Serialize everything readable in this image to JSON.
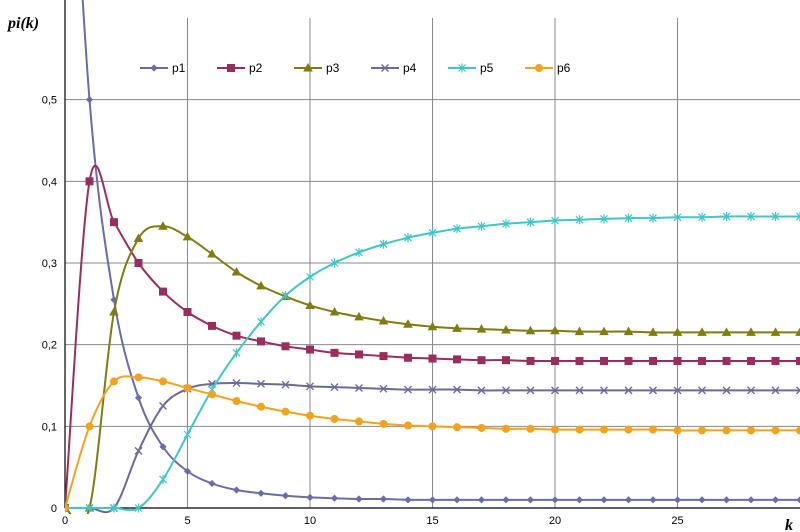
{
  "chart_data": {
    "type": "line",
    "title": "",
    "xlabel": "k",
    "ylabel": "pi(k)",
    "xlim": [
      0,
      30
    ],
    "ylim": [
      0,
      0.6
    ],
    "x_ticks": [
      "0",
      "5",
      "10",
      "15",
      "20",
      "25"
    ],
    "y_ticks": [
      "0",
      "0,1",
      "0,2",
      "0,3",
      "0,4",
      "0,5"
    ],
    "grid": true,
    "legend_position": "top",
    "x": [
      0,
      1,
      2,
      3,
      4,
      5,
      6,
      7,
      8,
      9,
      10,
      11,
      12,
      13,
      14,
      15,
      16,
      17,
      18,
      19,
      20,
      21,
      22,
      23,
      24,
      25,
      26,
      27,
      28,
      29,
      30
    ],
    "series": [
      {
        "name": "p1",
        "color": "#6b6ba8",
        "marker": "diamond",
        "values": [
          1.0,
          0.5,
          0.255,
          0.135,
          0.075,
          0.045,
          0.03,
          0.022,
          0.018,
          0.015,
          0.013,
          0.012,
          0.011,
          0.011,
          0.01,
          0.01,
          0.01,
          0.01,
          0.01,
          0.01,
          0.01,
          0.01,
          0.01,
          0.01,
          0.01,
          0.01,
          0.01,
          0.01,
          0.01,
          0.01,
          0.01
        ]
      },
      {
        "name": "p2",
        "color": "#9b2d5e",
        "marker": "square",
        "values": [
          0,
          0.4,
          0.35,
          0.3,
          0.265,
          0.24,
          0.223,
          0.211,
          0.204,
          0.198,
          0.194,
          0.19,
          0.188,
          0.186,
          0.184,
          0.183,
          0.182,
          0.181,
          0.181,
          0.18,
          0.18,
          0.18,
          0.18,
          0.18,
          0.18,
          0.18,
          0.18,
          0.18,
          0.18,
          0.18,
          0.18
        ]
      },
      {
        "name": "p3",
        "color": "#7d7d10",
        "marker": "triangle",
        "values": [
          0,
          0,
          0.24,
          0.33,
          0.345,
          0.332,
          0.311,
          0.289,
          0.272,
          0.259,
          0.248,
          0.24,
          0.234,
          0.229,
          0.225,
          0.222,
          0.22,
          0.219,
          0.218,
          0.217,
          0.217,
          0.216,
          0.216,
          0.216,
          0.215,
          0.215,
          0.215,
          0.215,
          0.215,
          0.215,
          0.215
        ]
      },
      {
        "name": "p4",
        "color": "#6b6b9b",
        "marker": "x",
        "values": [
          0,
          0,
          0,
          0.07,
          0.125,
          0.146,
          0.152,
          0.153,
          0.152,
          0.151,
          0.149,
          0.148,
          0.147,
          0.146,
          0.145,
          0.145,
          0.145,
          0.144,
          0.144,
          0.144,
          0.144,
          0.144,
          0.144,
          0.144,
          0.144,
          0.144,
          0.144,
          0.144,
          0.144,
          0.144,
          0.144
        ]
      },
      {
        "name": "p5",
        "color": "#3ec7c7",
        "marker": "star",
        "values": [
          0,
          0,
          0,
          0,
          0.035,
          0.09,
          0.145,
          0.19,
          0.228,
          0.26,
          0.283,
          0.3,
          0.313,
          0.323,
          0.331,
          0.337,
          0.342,
          0.345,
          0.348,
          0.35,
          0.352,
          0.353,
          0.354,
          0.355,
          0.355,
          0.356,
          0.356,
          0.357,
          0.357,
          0.357,
          0.357
        ]
      },
      {
        "name": "p6",
        "color": "#f2a21b",
        "marker": "circle",
        "values": [
          0,
          0.1,
          0.155,
          0.16,
          0.155,
          0.147,
          0.139,
          0.131,
          0.124,
          0.118,
          0.113,
          0.109,
          0.106,
          0.103,
          0.101,
          0.1,
          0.099,
          0.098,
          0.097,
          0.097,
          0.096,
          0.096,
          0.096,
          0.096,
          0.096,
          0.095,
          0.095,
          0.095,
          0.095,
          0.095,
          0.095
        ]
      }
    ]
  }
}
